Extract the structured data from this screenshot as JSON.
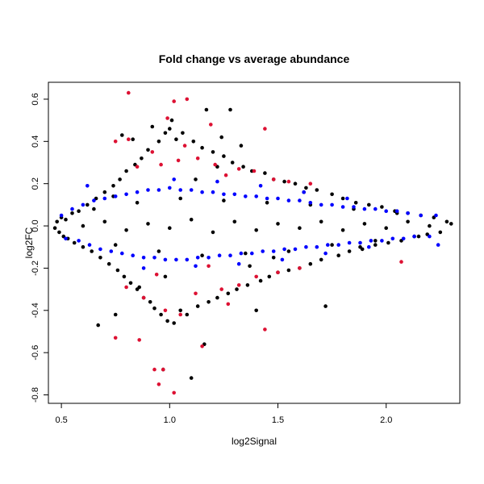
{
  "chart_data": {
    "type": "scatter",
    "title": "Fold change vs average abundance",
    "xlabel": "log2Signal",
    "ylabel": "log2FC",
    "xlim": [
      0.44,
      2.34
    ],
    "ylim": [
      -0.84,
      0.68
    ],
    "x_ticks": [
      0.5,
      1.0,
      1.5,
      2.0
    ],
    "x_tick_labels": [
      "0.5",
      "1.0",
      "1.5",
      "2.0"
    ],
    "y_ticks": [
      -0.8,
      -0.6,
      -0.4,
      -0.2,
      0.0,
      0.2,
      0.4,
      0.6
    ],
    "y_tick_labels": [
      "-0.8",
      "-0.6",
      "-0.4",
      "-0.2",
      "0.0",
      "0.2",
      "0.4",
      "0.6"
    ],
    "grid": false,
    "legend": "none",
    "series_colors": {
      "black": "#000000",
      "blue": "#0000ff",
      "red": "#dd1133"
    },
    "series": [
      {
        "color": "#000000",
        "points": [
          [
            0.47,
            -0.01
          ],
          [
            0.48,
            0.02
          ],
          [
            0.49,
            -0.03
          ],
          [
            0.5,
            0.04
          ],
          [
            0.51,
            -0.05
          ],
          [
            0.52,
            0.03
          ],
          [
            0.53,
            -0.06
          ],
          [
            0.55,
            0.06
          ],
          [
            0.56,
            -0.08
          ],
          [
            0.58,
            0.07
          ],
          [
            0.6,
            -0.1
          ],
          [
            0.62,
            0.1
          ],
          [
            0.64,
            -0.12
          ],
          [
            0.66,
            0.13
          ],
          [
            0.67,
            -0.47
          ],
          [
            0.68,
            -0.15
          ],
          [
            0.7,
            0.16
          ],
          [
            0.72,
            -0.18
          ],
          [
            0.74,
            0.19
          ],
          [
            0.75,
            -0.42
          ],
          [
            0.76,
            -0.21
          ],
          [
            0.77,
            0.22
          ],
          [
            0.78,
            0.43
          ],
          [
            0.79,
            -0.24
          ],
          [
            0.8,
            0.26
          ],
          [
            0.82,
            -0.27
          ],
          [
            0.83,
            0.41
          ],
          [
            0.84,
            0.29
          ],
          [
            0.85,
            -0.3
          ],
          [
            0.87,
            0.32
          ],
          [
            0.88,
            -0.34
          ],
          [
            0.9,
            0.36
          ],
          [
            0.91,
            -0.36
          ],
          [
            0.92,
            0.47
          ],
          [
            0.93,
            -0.39
          ],
          [
            0.95,
            0.4
          ],
          [
            0.96,
            -0.42
          ],
          [
            0.97,
            -0.68
          ],
          [
            0.98,
            0.44
          ],
          [
            0.99,
            -0.45
          ],
          [
            1.0,
            0.46
          ],
          [
            1.01,
            0.5
          ],
          [
            1.02,
            -0.46
          ],
          [
            1.03,
            0.41
          ],
          [
            1.05,
            -0.4
          ],
          [
            1.06,
            0.44
          ],
          [
            1.08,
            -0.42
          ],
          [
            1.1,
            -0.72
          ],
          [
            1.11,
            0.4
          ],
          [
            1.13,
            -0.38
          ],
          [
            1.15,
            0.37
          ],
          [
            1.16,
            -0.56
          ],
          [
            1.17,
            0.55
          ],
          [
            1.18,
            -0.36
          ],
          [
            1.2,
            0.35
          ],
          [
            1.22,
            -0.34
          ],
          [
            1.24,
            0.42
          ],
          [
            1.25,
            0.33
          ],
          [
            1.27,
            -0.32
          ],
          [
            1.29,
            0.3
          ],
          [
            1.31,
            -0.3
          ],
          [
            1.33,
            0.38
          ],
          [
            1.34,
            0.28
          ],
          [
            1.36,
            -0.28
          ],
          [
            1.38,
            0.26
          ],
          [
            1.4,
            -0.4
          ],
          [
            1.42,
            -0.26
          ],
          [
            1.44,
            0.25
          ],
          [
            1.46,
            -0.24
          ],
          [
            1.48,
            0.22
          ],
          [
            1.5,
            -0.22
          ],
          [
            1.53,
            0.21
          ],
          [
            1.55,
            -0.21
          ],
          [
            1.58,
            0.2
          ],
          [
            1.6,
            -0.2
          ],
          [
            1.63,
            0.18
          ],
          [
            1.65,
            -0.18
          ],
          [
            1.68,
            0.17
          ],
          [
            1.7,
            -0.16
          ],
          [
            1.72,
            -0.38
          ],
          [
            1.75,
            0.15
          ],
          [
            1.78,
            -0.14
          ],
          [
            1.8,
            0.13
          ],
          [
            1.83,
            -0.12
          ],
          [
            1.86,
            0.11
          ],
          [
            1.89,
            -0.11
          ],
          [
            1.92,
            0.1
          ],
          [
            1.95,
            -0.09
          ],
          [
            1.98,
            0.09
          ],
          [
            2.01,
            -0.08
          ],
          [
            2.04,
            0.07
          ],
          [
            2.07,
            -0.07
          ],
          [
            2.1,
            0.06
          ],
          [
            2.13,
            -0.05
          ],
          [
            2.16,
            0.05
          ],
          [
            2.19,
            -0.04
          ],
          [
            2.22,
            0.04
          ],
          [
            2.25,
            -0.03
          ],
          [
            2.28,
            0.02
          ],
          [
            2.3,
            0.01
          ],
          [
            0.6,
            0.0
          ],
          [
            0.7,
            0.02
          ],
          [
            0.8,
            -0.02
          ],
          [
            0.9,
            0.01
          ],
          [
            1.0,
            -0.01
          ],
          [
            1.1,
            0.03
          ],
          [
            1.2,
            -0.03
          ],
          [
            1.3,
            0.02
          ],
          [
            1.4,
            -0.02
          ],
          [
            1.5,
            0.01
          ],
          [
            1.6,
            -0.01
          ],
          [
            1.7,
            0.02
          ],
          [
            1.8,
            -0.02
          ],
          [
            1.9,
            0.01
          ],
          [
            2.0,
            -0.01
          ],
          [
            2.1,
            0.02
          ],
          [
            2.2,
            0.0
          ],
          [
            0.65,
            0.08
          ],
          [
            0.75,
            -0.09
          ],
          [
            0.85,
            0.11
          ],
          [
            0.95,
            -0.12
          ],
          [
            1.05,
            0.13
          ],
          [
            1.15,
            -0.14
          ],
          [
            1.25,
            0.12
          ],
          [
            1.35,
            -0.13
          ],
          [
            1.45,
            0.11
          ],
          [
            1.55,
            -0.12
          ],
          [
            1.65,
            0.1
          ],
          [
            1.75,
            -0.09
          ],
          [
            1.85,
            0.08
          ],
          [
            1.95,
            -0.07
          ],
          [
            2.05,
            0.06
          ],
          [
            2.15,
            -0.05
          ],
          [
            1.28,
            0.55
          ],
          [
            0.86,
            -0.29
          ],
          [
            1.12,
            0.22
          ],
          [
            1.37,
            -0.19
          ],
          [
            1.62,
            0.16
          ],
          [
            0.98,
            -0.24
          ],
          [
            1.22,
            0.28
          ],
          [
            1.48,
            -0.15
          ],
          [
            0.74,
            0.14
          ],
          [
            1.88,
            -0.1
          ]
        ]
      },
      {
        "color": "#0000ff",
        "points": [
          [
            0.5,
            0.05
          ],
          [
            0.52,
            -0.06
          ],
          [
            0.55,
            0.08
          ],
          [
            0.58,
            -0.07
          ],
          [
            0.6,
            0.1
          ],
          [
            0.63,
            -0.09
          ],
          [
            0.65,
            0.12
          ],
          [
            0.68,
            -0.11
          ],
          [
            0.7,
            0.13
          ],
          [
            0.73,
            -0.12
          ],
          [
            0.75,
            0.14
          ],
          [
            0.78,
            -0.13
          ],
          [
            0.8,
            0.15
          ],
          [
            0.83,
            -0.14
          ],
          [
            0.85,
            0.16
          ],
          [
            0.88,
            -0.15
          ],
          [
            0.9,
            0.17
          ],
          [
            0.93,
            -0.15
          ],
          [
            0.95,
            0.17
          ],
          [
            0.98,
            -0.16
          ],
          [
            1.0,
            0.18
          ],
          [
            1.03,
            -0.16
          ],
          [
            1.05,
            0.17
          ],
          [
            1.08,
            -0.16
          ],
          [
            1.1,
            0.17
          ],
          [
            1.13,
            -0.15
          ],
          [
            1.15,
            0.16
          ],
          [
            1.18,
            -0.15
          ],
          [
            1.2,
            0.16
          ],
          [
            1.23,
            -0.14
          ],
          [
            1.25,
            0.15
          ],
          [
            1.28,
            -0.14
          ],
          [
            1.3,
            0.15
          ],
          [
            1.33,
            -0.13
          ],
          [
            1.35,
            0.14
          ],
          [
            1.38,
            -0.13
          ],
          [
            1.4,
            0.14
          ],
          [
            1.43,
            -0.12
          ],
          [
            1.45,
            0.13
          ],
          [
            1.48,
            -0.12
          ],
          [
            1.5,
            0.13
          ],
          [
            1.53,
            -0.11
          ],
          [
            1.55,
            0.12
          ],
          [
            1.58,
            -0.11
          ],
          [
            1.6,
            0.12
          ],
          [
            1.63,
            -0.1
          ],
          [
            1.65,
            0.11
          ],
          [
            1.68,
            -0.1
          ],
          [
            1.7,
            0.1
          ],
          [
            1.73,
            -0.09
          ],
          [
            1.75,
            0.1
          ],
          [
            1.78,
            -0.09
          ],
          [
            1.8,
            0.09
          ],
          [
            1.83,
            -0.08
          ],
          [
            1.85,
            0.09
          ],
          [
            1.88,
            -0.08
          ],
          [
            1.9,
            0.08
          ],
          [
            1.93,
            -0.07
          ],
          [
            1.95,
            0.08
          ],
          [
            1.98,
            -0.07
          ],
          [
            2.0,
            0.07
          ],
          [
            2.03,
            -0.06
          ],
          [
            2.05,
            0.07
          ],
          [
            2.08,
            -0.06
          ],
          [
            2.1,
            0.06
          ],
          [
            2.13,
            -0.05
          ],
          [
            2.16,
            0.05
          ],
          [
            2.2,
            -0.05
          ],
          [
            2.23,
            0.05
          ],
          [
            0.62,
            0.19
          ],
          [
            1.02,
            0.22
          ],
          [
            1.22,
            0.21
          ],
          [
            1.42,
            0.19
          ],
          [
            1.62,
            0.16
          ],
          [
            1.82,
            0.13
          ],
          [
            0.88,
            -0.2
          ],
          [
            1.12,
            -0.19
          ],
          [
            1.32,
            -0.18
          ],
          [
            1.52,
            -0.16
          ],
          [
            1.72,
            -0.13
          ],
          [
            1.92,
            -0.1
          ],
          [
            2.24,
            -0.09
          ]
        ]
      },
      {
        "color": "#dd1133",
        "points": [
          [
            0.81,
            0.63
          ],
          [
            1.02,
            0.59
          ],
          [
            1.08,
            0.6
          ],
          [
            1.44,
            0.46
          ],
          [
            1.19,
            0.48
          ],
          [
            0.99,
            0.51
          ],
          [
            0.75,
            0.4
          ],
          [
            0.81,
            0.41
          ],
          [
            0.92,
            0.35
          ],
          [
            1.07,
            0.38
          ],
          [
            1.13,
            0.32
          ],
          [
            1.21,
            0.29
          ],
          [
            1.32,
            0.27
          ],
          [
            1.39,
            0.26
          ],
          [
            1.48,
            0.22
          ],
          [
            1.55,
            0.21
          ],
          [
            1.65,
            0.2
          ],
          [
            0.85,
            0.28
          ],
          [
            0.96,
            0.29
          ],
          [
            1.04,
            0.31
          ],
          [
            1.26,
            0.24
          ],
          [
            0.95,
            -0.75
          ],
          [
            1.02,
            -0.79
          ],
          [
            0.97,
            -0.68
          ],
          [
            0.93,
            -0.68
          ],
          [
            0.86,
            -0.54
          ],
          [
            0.75,
            -0.53
          ],
          [
            1.15,
            -0.57
          ],
          [
            1.44,
            -0.49
          ],
          [
            1.05,
            -0.42
          ],
          [
            0.98,
            -0.4
          ],
          [
            0.88,
            -0.34
          ],
          [
            1.12,
            -0.32
          ],
          [
            1.24,
            -0.3
          ],
          [
            1.32,
            -0.28
          ],
          [
            1.4,
            -0.24
          ],
          [
            1.5,
            -0.22
          ],
          [
            1.6,
            -0.2
          ],
          [
            2.07,
            -0.17
          ],
          [
            0.94,
            -0.23
          ],
          [
            1.18,
            -0.19
          ],
          [
            1.27,
            -0.37
          ],
          [
            0.8,
            -0.29
          ]
        ]
      }
    ]
  }
}
